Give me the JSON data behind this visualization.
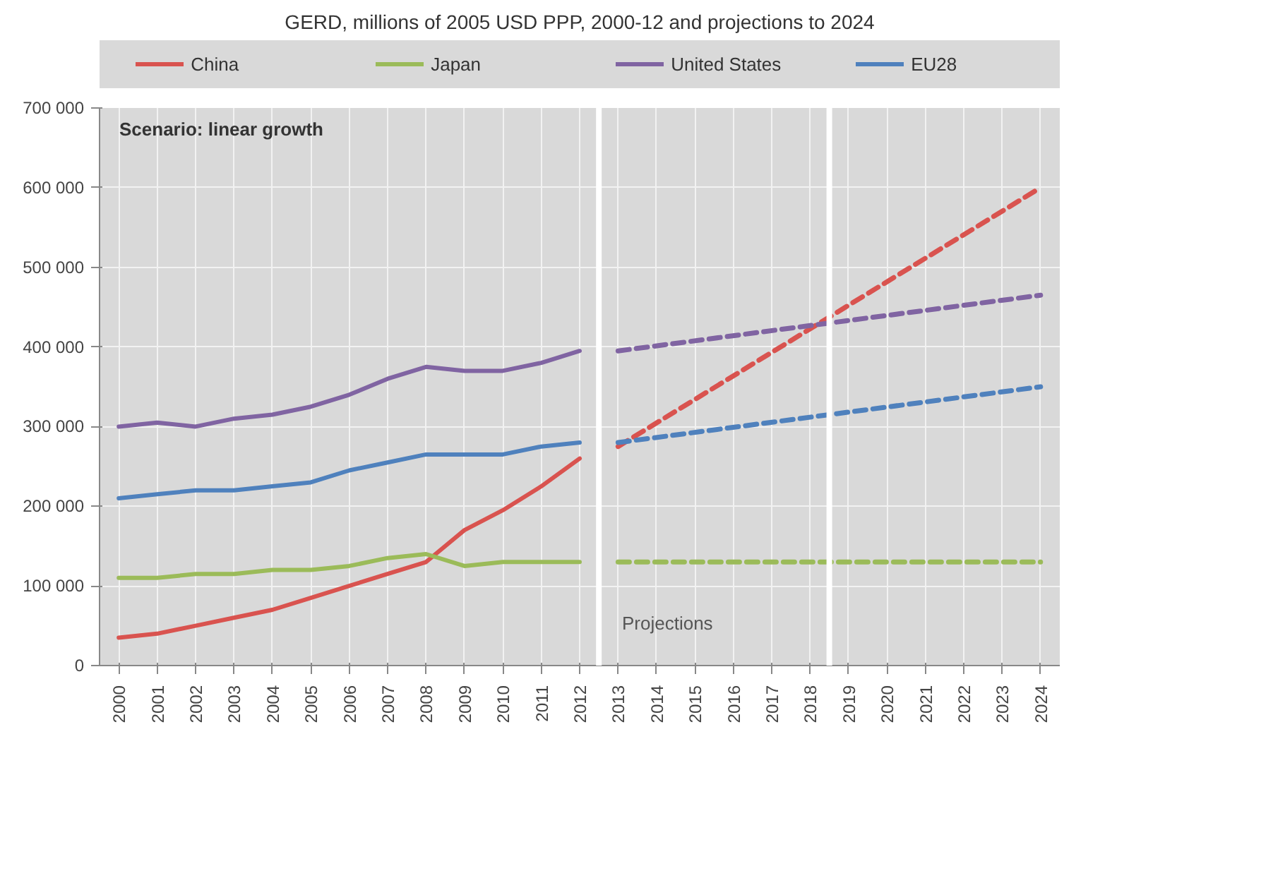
{
  "chart_data": {
    "type": "line",
    "title": "GERD, millions of 2005 USD PPP, 2000-12 and projections to 2024",
    "xlim": [
      1999.5,
      2024.5
    ],
    "xticks": [
      2000,
      2001,
      2002,
      2003,
      2004,
      2005,
      2006,
      2007,
      2008,
      2009,
      2010,
      2011,
      2012,
      2013,
      2014,
      2015,
      2016,
      2017,
      2018,
      2019,
      2020,
      2021,
      2022,
      2023,
      2024
    ],
    "ylim": [
      0,
      700000
    ],
    "yticks": [
      {
        "value": 0,
        "label": "0"
      },
      {
        "value": 100000,
        "label": "100 000"
      },
      {
        "value": 200000,
        "label": "200 000"
      },
      {
        "value": 300000,
        "label": "300 000"
      },
      {
        "value": 400000,
        "label": "400 000"
      },
      {
        "value": 500000,
        "label": "500 000"
      },
      {
        "value": 600000,
        "label": "600 000"
      },
      {
        "value": 700000,
        "label": "700 000"
      }
    ],
    "grid": true,
    "legend": "top",
    "annotations": [
      "Scenario: linear growth",
      "Projections"
    ],
    "ref_lines": [
      {
        "axis": "x",
        "value": 2012.5,
        "label": null,
        "color": "#ffffff"
      },
      {
        "axis": "x",
        "value": 2018.5,
        "label": null,
        "color": "#ffffff"
      }
    ],
    "series": [
      {
        "name": "China",
        "color": "#d9534f",
        "line_style": "solid",
        "x": [
          2000,
          2001,
          2002,
          2003,
          2004,
          2005,
          2006,
          2007,
          2008,
          2009,
          2010,
          2011,
          2012
        ],
        "values": [
          35000,
          40000,
          50000,
          60000,
          70000,
          85000,
          100000,
          115000,
          130000,
          170000,
          195000,
          225000,
          260000
        ]
      },
      {
        "name": "Japan",
        "color": "#9bbb59",
        "line_style": "solid",
        "x": [
          2000,
          2001,
          2002,
          2003,
          2004,
          2005,
          2006,
          2007,
          2008,
          2009,
          2010,
          2011,
          2012
        ],
        "values": [
          110000,
          110000,
          115000,
          115000,
          120000,
          120000,
          125000,
          135000,
          140000,
          125000,
          130000,
          130000,
          130000
        ]
      },
      {
        "name": "United States",
        "color": "#8064a2",
        "line_style": "solid",
        "x": [
          2000,
          2001,
          2002,
          2003,
          2004,
          2005,
          2006,
          2007,
          2008,
          2009,
          2010,
          2011,
          2012
        ],
        "values": [
          300000,
          305000,
          300000,
          310000,
          315000,
          325000,
          340000,
          360000,
          375000,
          370000,
          370000,
          380000,
          395000
        ]
      },
      {
        "name": "EU28",
        "color": "#4f81bd",
        "line_style": "solid",
        "x": [
          2000,
          2001,
          2002,
          2003,
          2004,
          2005,
          2006,
          2007,
          2008,
          2009,
          2010,
          2011,
          2012
        ],
        "values": [
          210000,
          215000,
          220000,
          220000,
          225000,
          230000,
          245000,
          255000,
          265000,
          265000,
          265000,
          275000,
          280000
        ]
      },
      {
        "color": "#d9534f",
        "line_style": "dashed",
        "x": [
          2013,
          2024
        ],
        "values": [
          275000,
          600000
        ]
      },
      {
        "color": "#9bbb59",
        "line_style": "dashed",
        "x": [
          2013,
          2024
        ],
        "values": [
          130000,
          130000
        ]
      },
      {
        "color": "#8064a2",
        "line_style": "dashed",
        "x": [
          2013,
          2024
        ],
        "values": [
          395000,
          465000
        ]
      },
      {
        "color": "#4f81bd",
        "line_style": "dashed",
        "x": [
          2013,
          2024
        ],
        "values": [
          280000,
          350000
        ]
      }
    ]
  }
}
